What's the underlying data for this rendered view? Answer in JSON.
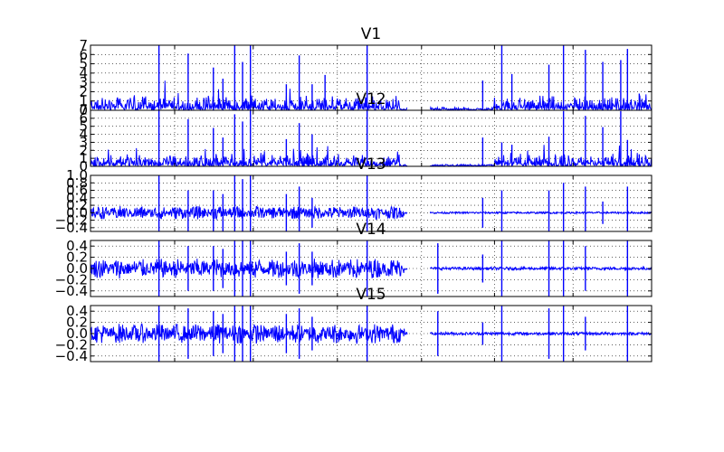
{
  "chart_data": [
    {
      "type": "line",
      "title": "V1",
      "ylim": [
        0,
        7
      ],
      "yticks": [
        0,
        1,
        2,
        3,
        4,
        5,
        6,
        7
      ],
      "ytick_labels": [
        "0",
        "1",
        "2",
        "3",
        "4",
        "5",
        "6",
        "7"
      ],
      "xlabel": "",
      "ylabel": "",
      "grid": true,
      "series": [
        {
          "name": "V1",
          "color": "#0000ff",
          "style": "magnitude",
          "gap": [
            0.565,
            0.605
          ],
          "peaks": [
            [
              0.122,
              7.0
            ],
            [
              0.174,
              6.1
            ],
            [
              0.219,
              4.6
            ],
            [
              0.236,
              3.4
            ],
            [
              0.257,
              7.0
            ],
            [
              0.271,
              5.2
            ],
            [
              0.285,
              7.0
            ],
            [
              0.349,
              2.8
            ],
            [
              0.372,
              5.9
            ],
            [
              0.395,
              2.8
            ],
            [
              0.418,
              3.8
            ],
            [
              0.493,
              7.0
            ],
            [
              0.699,
              3.2
            ],
            [
              0.733,
              7.0
            ],
            [
              0.751,
              3.9
            ],
            [
              0.817,
              4.9
            ],
            [
              0.843,
              7.0
            ],
            [
              0.882,
              6.5
            ],
            [
              0.913,
              5.2
            ],
            [
              0.945,
              5.4
            ],
            [
              0.957,
              6.6
            ],
            [
              0.978,
              1.8
            ]
          ]
        }
      ]
    },
    {
      "type": "line",
      "title": "V12",
      "ylim": [
        0,
        7
      ],
      "yticks": [
        0,
        1,
        2,
        3,
        4,
        5,
        6,
        7
      ],
      "ytick_labels": [
        "0",
        "1",
        "2",
        "3",
        "4",
        "5",
        "6",
        "7"
      ],
      "xlabel": "",
      "ylabel": "",
      "grid": true,
      "series": [
        {
          "name": "V12",
          "color": "#0000ff",
          "style": "magnitude",
          "gap": [
            0.565,
            0.605
          ],
          "peaks": [
            [
              0.122,
              7.0
            ],
            [
              0.174,
              5.9
            ],
            [
              0.219,
              4.8
            ],
            [
              0.236,
              3.6
            ],
            [
              0.257,
              6.5
            ],
            [
              0.271,
              5.6
            ],
            [
              0.285,
              7.0
            ],
            [
              0.349,
              3.4
            ],
            [
              0.372,
              5.4
            ],
            [
              0.395,
              4.0
            ],
            [
              0.493,
              7.0
            ],
            [
              0.699,
              3.6
            ],
            [
              0.733,
              3.0
            ],
            [
              0.751,
              2.7
            ],
            [
              0.817,
              3.7
            ],
            [
              0.843,
              6.9
            ],
            [
              0.882,
              6.3
            ],
            [
              0.913,
              4.9
            ],
            [
              0.945,
              6.9
            ],
            [
              0.957,
              3.3
            ],
            [
              0.978,
              1.5
            ]
          ]
        }
      ]
    },
    {
      "type": "line",
      "title": "V13",
      "ylim": [
        -0.5,
        1.0
      ],
      "yticks": [
        -0.4,
        -0.2,
        0.0,
        0.2,
        0.4,
        0.6,
        0.8,
        1.0
      ],
      "ytick_labels": [
        "−0.4",
        "−0.2",
        "0.0",
        "0.2",
        "0.4",
        "0.6",
        "0.8",
        "1.0"
      ],
      "xlabel": "",
      "ylabel": "",
      "grid": true,
      "series": [
        {
          "name": "V13",
          "color": "#0000ff",
          "style": "oscillation",
          "baseline": 0.0,
          "gap": [
            0.565,
            0.605
          ],
          "peaks": [
            [
              0.122,
              1.0
            ],
            [
              0.174,
              0.6
            ],
            [
              0.219,
              0.6
            ],
            [
              0.236,
              0.5
            ],
            [
              0.257,
              1.0
            ],
            [
              0.271,
              0.9
            ],
            [
              0.285,
              1.0
            ],
            [
              0.349,
              0.5
            ],
            [
              0.372,
              0.7
            ],
            [
              0.395,
              0.4
            ],
            [
              0.493,
              1.0
            ],
            [
              0.699,
              0.4
            ],
            [
              0.733,
              0.6
            ],
            [
              0.817,
              0.6
            ],
            [
              0.843,
              0.8
            ],
            [
              0.882,
              0.7
            ],
            [
              0.913,
              0.3
            ],
            [
              0.957,
              0.7
            ]
          ]
        }
      ]
    },
    {
      "type": "line",
      "title": "V14",
      "ylim": [
        -0.5,
        0.5
      ],
      "yticks": [
        -0.4,
        -0.2,
        0.0,
        0.2,
        0.4
      ],
      "ytick_labels": [
        "−0.4",
        "−0.2",
        "0.0",
        "0.2",
        "0.4"
      ],
      "xlabel": "",
      "ylabel": "",
      "grid": true,
      "series": [
        {
          "name": "V14",
          "color": "#0000ff",
          "style": "oscillation",
          "baseline": 0.0,
          "gap": [
            0.565,
            0.605
          ],
          "peaks": [
            [
              0.122,
              0.5
            ],
            [
              0.174,
              0.4
            ],
            [
              0.219,
              0.4
            ],
            [
              0.236,
              0.35
            ],
            [
              0.257,
              0.5
            ],
            [
              0.271,
              0.5
            ],
            [
              0.285,
              0.5
            ],
            [
              0.349,
              0.3
            ],
            [
              0.372,
              0.45
            ],
            [
              0.395,
              0.3
            ],
            [
              0.493,
              0.5
            ],
            [
              0.619,
              0.45
            ],
            [
              0.699,
              0.25
            ],
            [
              0.733,
              0.5
            ],
            [
              0.817,
              0.5
            ],
            [
              0.843,
              0.5
            ],
            [
              0.882,
              0.4
            ],
            [
              0.957,
              0.5
            ]
          ]
        }
      ]
    },
    {
      "type": "line",
      "title": "V15",
      "ylim": [
        -0.5,
        0.5
      ],
      "yticks": [
        -0.4,
        -0.2,
        0.0,
        0.2,
        0.4
      ],
      "ytick_labels": [
        "−0.4",
        "−0.2",
        "0.0",
        "0.2",
        "0.4"
      ],
      "xlabel": "",
      "ylabel": "",
      "grid": true,
      "series": [
        {
          "name": "V15",
          "color": "#0000ff",
          "style": "oscillation",
          "baseline": 0.0,
          "gap": [
            0.565,
            0.605
          ],
          "peaks": [
            [
              0.122,
              0.5
            ],
            [
              0.174,
              0.45
            ],
            [
              0.219,
              0.4
            ],
            [
              0.236,
              0.35
            ],
            [
              0.257,
              0.5
            ],
            [
              0.271,
              0.5
            ],
            [
              0.285,
              0.5
            ],
            [
              0.349,
              0.35
            ],
            [
              0.372,
              0.45
            ],
            [
              0.395,
              0.3
            ],
            [
              0.493,
              0.5
            ],
            [
              0.619,
              0.4
            ],
            [
              0.699,
              0.2
            ],
            [
              0.733,
              0.5
            ],
            [
              0.817,
              0.45
            ],
            [
              0.843,
              0.5
            ],
            [
              0.882,
              0.3
            ],
            [
              0.957,
              0.5
            ]
          ]
        }
      ]
    }
  ]
}
